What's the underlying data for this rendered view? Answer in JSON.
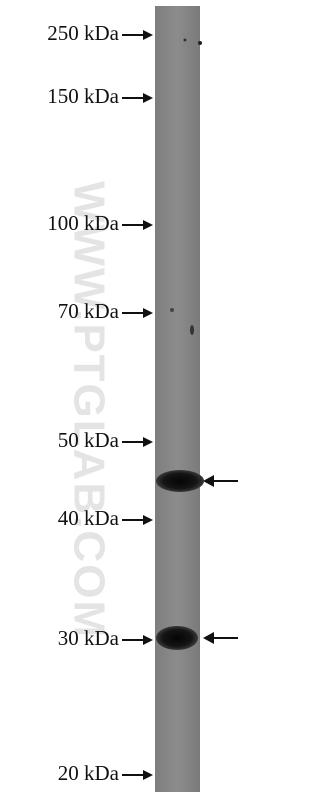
{
  "markers": [
    {
      "label": "250 kDa"
    },
    {
      "label": "150 kDa"
    },
    {
      "label": "100 kDa"
    },
    {
      "label": "70 kDa"
    },
    {
      "label": "50 kDa"
    },
    {
      "label": "40 kDa"
    },
    {
      "label": "30 kDa"
    },
    {
      "label": "20 kDa"
    }
  ],
  "watermark": "WWW.PTGLAB.COM"
}
